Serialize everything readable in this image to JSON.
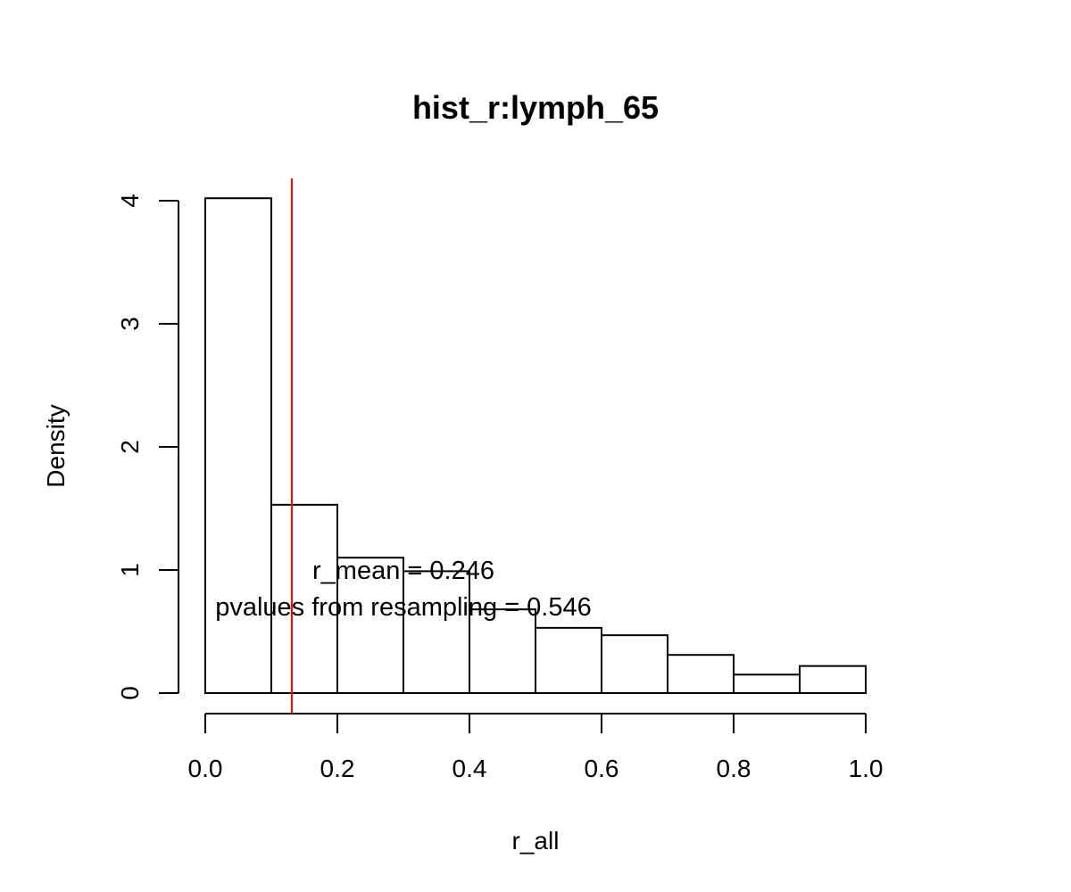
{
  "chart_data": {
    "type": "bar",
    "title": "hist_r:lymph_65",
    "xlabel": "r_all",
    "ylabel": "Density",
    "xlim": [
      0,
      1
    ],
    "ylim": [
      0,
      4
    ],
    "bins": [
      {
        "from": 0.0,
        "to": 0.1,
        "density": 4.02
      },
      {
        "from": 0.1,
        "to": 0.2,
        "density": 1.53
      },
      {
        "from": 0.2,
        "to": 0.3,
        "density": 1.1
      },
      {
        "from": 0.3,
        "to": 0.4,
        "density": 0.99
      },
      {
        "from": 0.4,
        "to": 0.5,
        "density": 0.68
      },
      {
        "from": 0.5,
        "to": 0.6,
        "density": 0.53
      },
      {
        "from": 0.6,
        "to": 0.7,
        "density": 0.47
      },
      {
        "from": 0.7,
        "to": 0.8,
        "density": 0.31
      },
      {
        "from": 0.8,
        "to": 0.9,
        "density": 0.15
      },
      {
        "from": 0.9,
        "to": 1.0,
        "density": 0.22
      }
    ],
    "x_ticks": [
      "0.0",
      "0.2",
      "0.4",
      "0.6",
      "0.8",
      "1.0"
    ],
    "y_ticks": [
      "0",
      "1",
      "2",
      "3",
      "4"
    ],
    "vline": {
      "x": 0.131,
      "color": "#ff0000"
    },
    "annotations": [
      "r_mean = 0.246",
      "pvalues from resampling = 0.546"
    ],
    "grid": false,
    "legend": "none"
  }
}
